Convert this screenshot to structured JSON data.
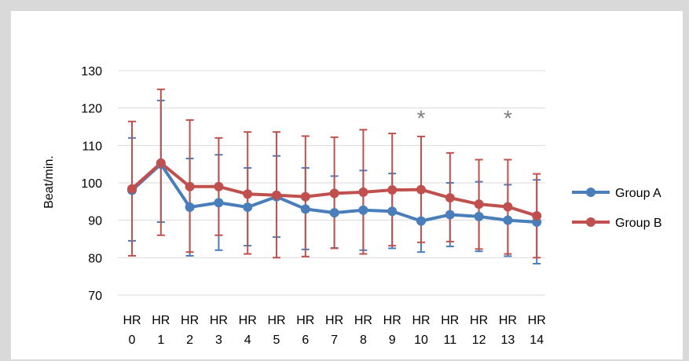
{
  "chart_data": {
    "type": "line",
    "ylabel": "Beat/min.",
    "ylim": [
      70,
      130
    ],
    "yticks": [
      70,
      80,
      90,
      100,
      110,
      120,
      130
    ],
    "grid": true,
    "legend_position": "right",
    "categories": [
      [
        "HR",
        "0"
      ],
      [
        "HR",
        "1"
      ],
      [
        "HR",
        "2"
      ],
      [
        "HR",
        "3"
      ],
      [
        "HR",
        "4"
      ],
      [
        "HR",
        "5"
      ],
      [
        "HR",
        "6"
      ],
      [
        "HR",
        "7"
      ],
      [
        "HR",
        "8"
      ],
      [
        "HR",
        "9"
      ],
      [
        "HR",
        "10"
      ],
      [
        "HR",
        "11"
      ],
      [
        "HR",
        "12"
      ],
      [
        "HR",
        "13"
      ],
      [
        "HR",
        "14"
      ]
    ],
    "series": [
      {
        "name": "Group A",
        "color": "#4a7ebb",
        "values": [
          98,
          105,
          93.5,
          94.7,
          93.5,
          96.3,
          93,
          92,
          92.7,
          92.4,
          89.8,
          91.5,
          91,
          90,
          89.5
        ],
        "err_upper": [
          112,
          122,
          106.5,
          107.5,
          104,
          107.2,
          104,
          101.8,
          103.3,
          102.5,
          98,
          100,
          100.3,
          99.5,
          100.8
        ],
        "err_lower": [
          84.5,
          89.5,
          80.5,
          82,
          83.2,
          85.5,
          82.2,
          82.6,
          82,
          82.5,
          81.5,
          83,
          81.7,
          80.4,
          78.4
        ]
      },
      {
        "name": "Group B",
        "color": "#c0504d",
        "values": [
          98.4,
          105.3,
          99,
          99,
          97,
          96.7,
          96.3,
          97.2,
          97.5,
          98.1,
          98.2,
          96,
          94.3,
          93.6,
          91.2
        ],
        "err_upper": [
          116.4,
          125,
          116.8,
          112,
          113.6,
          113.6,
          112.5,
          112.2,
          114.2,
          113.2,
          112.4,
          108,
          106.2,
          106.2,
          102.4
        ],
        "err_lower": [
          80.5,
          86,
          81.5,
          86,
          81,
          80,
          80.3,
          82.5,
          81,
          83.2,
          84.1,
          84.3,
          82.3,
          81,
          80
        ]
      }
    ],
    "annotations": [
      {
        "text": "*",
        "category_index": 10
      },
      {
        "text": "*",
        "category_index": 13
      }
    ]
  }
}
